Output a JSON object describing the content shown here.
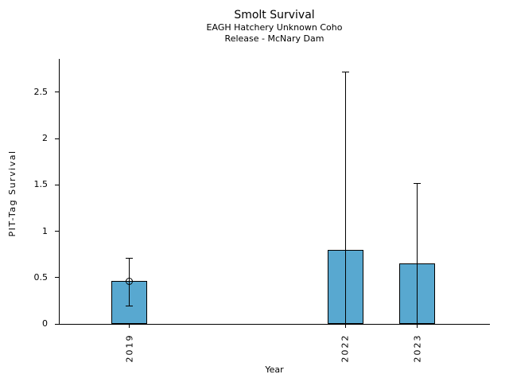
{
  "chart_data": {
    "type": "bar",
    "title": "Smolt Survival",
    "subtitle_line1": "EAGH Hatchery Unknown Coho",
    "subtitle_line2": "Release - McNary Dam",
    "xlabel": "Year",
    "ylabel": "PIT-Tag Survival",
    "categories": [
      "2019",
      "2022",
      "2023"
    ],
    "x_values_years": [
      2019,
      2022,
      2023
    ],
    "series": [
      {
        "name": "PIT-Tag Survival",
        "values": [
          0.46,
          0.8,
          0.65
        ],
        "error_upper": [
          0.71,
          2.72,
          1.52
        ],
        "error_lower": [
          0.19,
          0.0,
          0.0
        ]
      }
    ],
    "point_markers": [
      {
        "x_year": 2019,
        "value": 0.46
      }
    ],
    "yticks": [
      0,
      0.5,
      1,
      1.5,
      2,
      2.5
    ],
    "ytick_labels": [
      "0",
      "0.5",
      "1",
      "1.5",
      "2",
      "2.5"
    ],
    "ylim": [
      0,
      2.86
    ],
    "xlim": [
      2018.03,
      2024.01
    ],
    "bar_width_years": 0.5,
    "colors": {
      "bar_fill": "#58A8D0",
      "bar_edge": "#000000",
      "error_bar": "#000000",
      "text": "#000000",
      "background": "#FFFFFF"
    },
    "grid": false,
    "legend": false
  }
}
